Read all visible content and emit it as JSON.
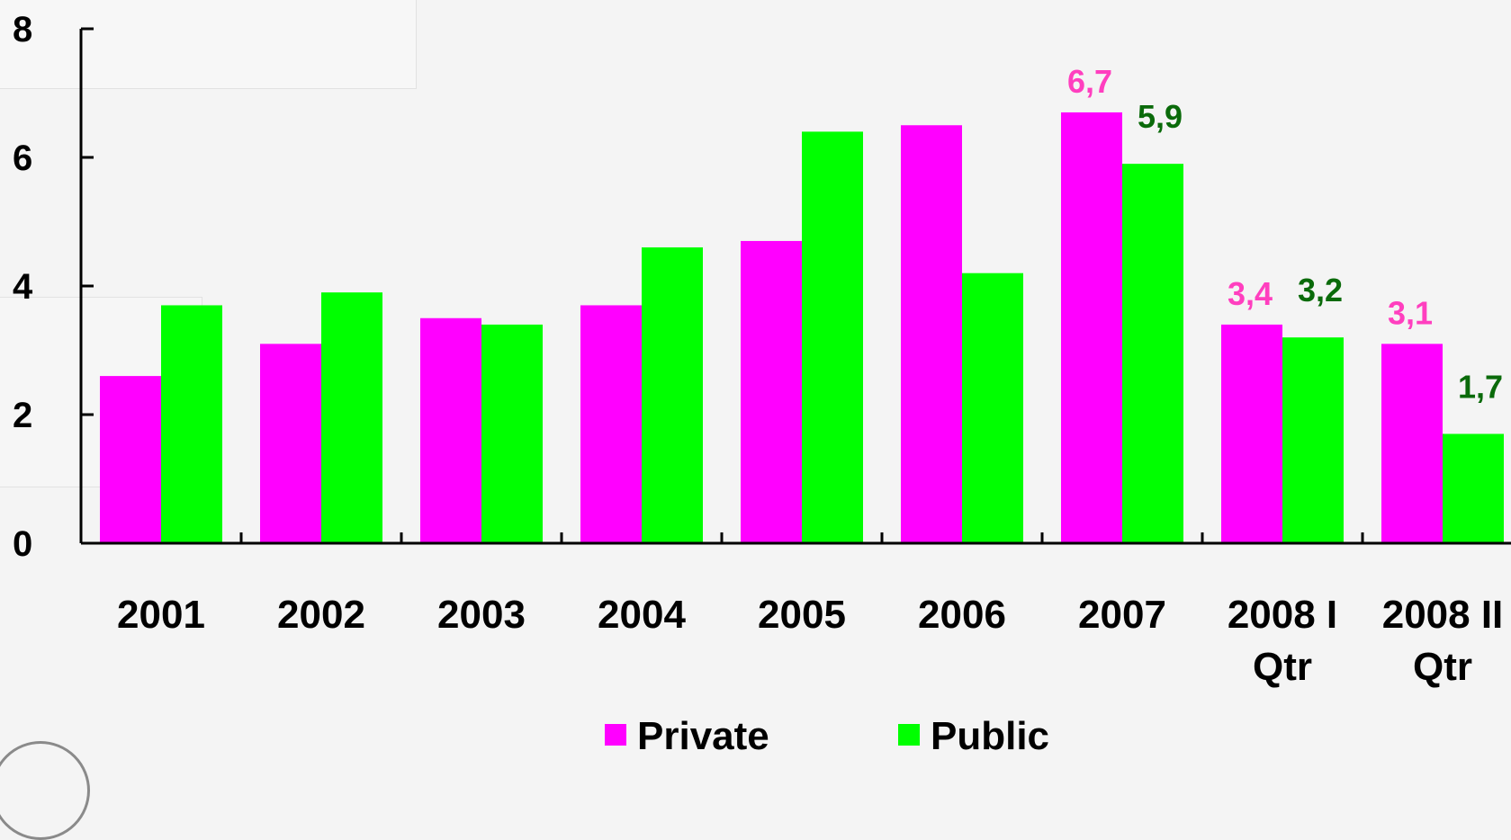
{
  "chart_data": {
    "type": "bar",
    "title": "",
    "xlabel": "",
    "ylabel": "",
    "ylim": [
      0,
      8
    ],
    "yticks": [
      "0",
      "2",
      "4",
      "6",
      "8"
    ],
    "categories": [
      "2001",
      "2002",
      "2003",
      "2004",
      "2005",
      "2006",
      "2007",
      "2008 I Qtr",
      "2008 II Qtr"
    ],
    "series": [
      {
        "name": "Private",
        "color": "#ff00ff",
        "label_color": "#ff3fbf",
        "values": [
          2.6,
          3.1,
          3.5,
          3.7,
          4.7,
          6.5,
          6.7,
          3.4,
          3.1
        ],
        "data_labels": [
          null,
          null,
          null,
          null,
          null,
          null,
          "6,7",
          "3,4",
          "3,1"
        ]
      },
      {
        "name": "Public",
        "color": "#00ff00",
        "label_color": "#0a6a0a",
        "values": [
          3.7,
          3.9,
          3.4,
          4.6,
          6.4,
          4.2,
          5.9,
          3.2,
          1.7
        ],
        "data_labels": [
          null,
          null,
          null,
          null,
          null,
          null,
          "5,9",
          "3,2",
          "1,7"
        ]
      }
    ],
    "legend_position": "bottom-center",
    "grid": false
  }
}
